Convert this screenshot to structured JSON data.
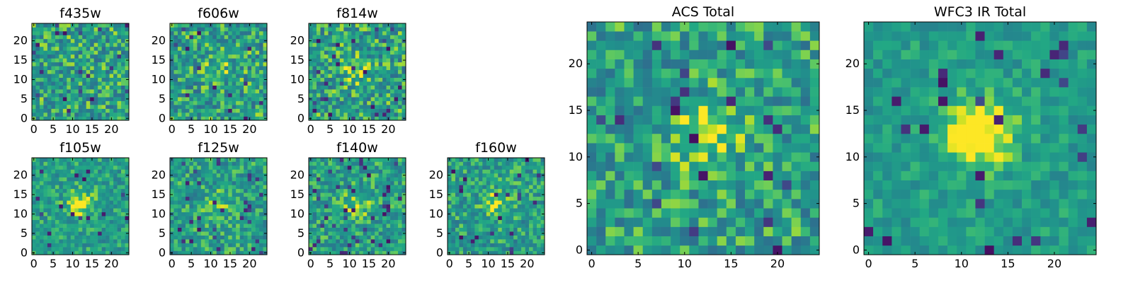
{
  "chart_data": {
    "type": "heatmap",
    "colormap": "viridis",
    "pixel_grid": [
      25,
      25
    ],
    "panels": [
      {
        "title": "f435w",
        "xticks": [
          0,
          5,
          10,
          15,
          20
        ],
        "yticks": [
          0,
          5,
          10,
          15,
          20
        ],
        "center_peak": 0.0,
        "speckle": 0.5,
        "low_pixels": 0.03,
        "seed": 11
      },
      {
        "title": "f606w",
        "xticks": [
          0,
          5,
          10,
          15,
          20
        ],
        "yticks": [
          0,
          5,
          10,
          15,
          20
        ],
        "center_peak": 0.12,
        "speckle": 0.5,
        "low_pixels": 0.03,
        "seed": 23
      },
      {
        "title": "f814w",
        "xticks": [
          0,
          5,
          10,
          15,
          20
        ],
        "yticks": [
          0,
          5,
          10,
          15,
          20
        ],
        "center_peak": 0.2,
        "speckle": 0.5,
        "low_pixels": 0.04,
        "seed": 37
      },
      {
        "title": "f105w",
        "xticks": [
          0,
          5,
          10,
          15,
          20
        ],
        "yticks": [
          0,
          5,
          10,
          15,
          20
        ],
        "center_peak": 0.3,
        "speckle": 0.35,
        "low_pixels": 0.03,
        "seed": 41
      },
      {
        "title": "f125w",
        "xticks": [
          0,
          5,
          10,
          15,
          20
        ],
        "yticks": [
          0,
          5,
          10,
          15,
          20
        ],
        "center_peak": 0.15,
        "speckle": 0.4,
        "low_pixels": 0.04,
        "seed": 53
      },
      {
        "title": "f140w",
        "xticks": [
          0,
          5,
          10,
          15,
          20
        ],
        "yticks": [
          0,
          5,
          10,
          15,
          20
        ],
        "center_peak": 0.2,
        "speckle": 0.4,
        "low_pixels": 0.05,
        "seed": 67
      },
      {
        "title": "f160w",
        "xticks": [
          0,
          5,
          10,
          15,
          20
        ],
        "yticks": [
          0,
          5,
          10,
          15,
          20
        ],
        "center_peak": 0.25,
        "speckle": 0.4,
        "low_pixels": 0.04,
        "seed": 79
      },
      {
        "title": "ACS Total",
        "xticks": [
          0,
          5,
          10,
          15,
          20
        ],
        "yticks": [
          0,
          5,
          10,
          15,
          20
        ],
        "center_peak": 0.3,
        "speckle": 0.45,
        "low_pixels": 0.035,
        "seed": 83
      },
      {
        "title": "WFC3 IR Total",
        "xticks": [
          0,
          5,
          10,
          15,
          20
        ],
        "yticks": [
          0,
          5,
          10,
          15,
          20
        ],
        "center_peak": 0.45,
        "speckle": 0.25,
        "low_pixels": 0.03,
        "seed": 97
      }
    ]
  }
}
